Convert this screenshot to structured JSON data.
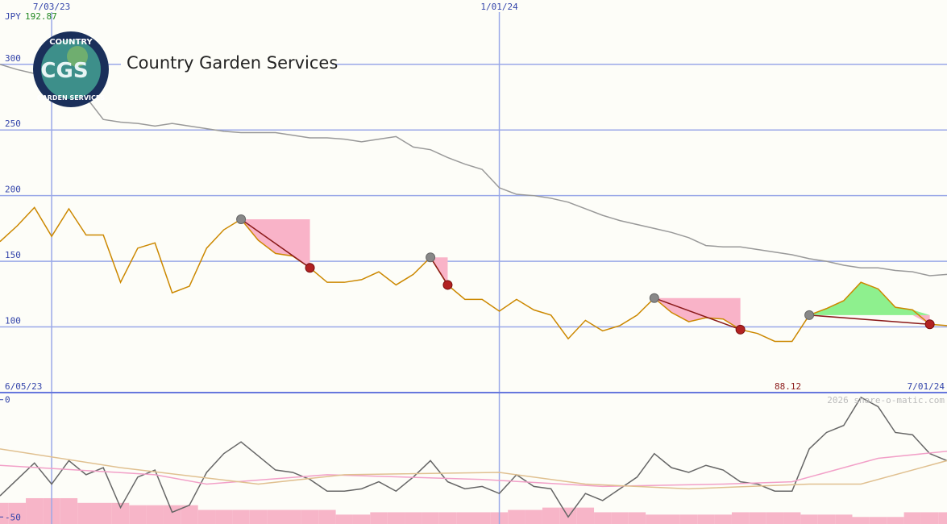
{
  "chart_data": {
    "type": "line",
    "title": "Country Garden Services",
    "logo_text": [
      "COUNTRY",
      "CGS",
      "GARDEN SERVICES"
    ],
    "currency": "JPY",
    "high": 192.87,
    "low": 88.12,
    "start_label": "6/05/23",
    "end_label": "7/01/24",
    "credit": "2026 share-o-matic.com",
    "x": [
      0,
      1,
      2,
      3,
      4,
      5,
      6,
      7,
      8,
      9,
      10,
      11,
      12,
      13,
      14,
      15,
      16,
      17,
      18,
      19,
      20,
      21,
      22,
      23,
      24,
      25,
      26,
      27,
      28,
      29,
      30,
      31,
      32,
      33,
      34,
      35,
      36,
      37,
      38,
      39,
      40,
      41,
      42,
      43,
      44,
      45,
      46,
      47,
      48,
      49,
      50,
      51,
      52,
      53,
      54,
      55
    ],
    "xlim": [
      0,
      55
    ],
    "xticks": [
      {
        "value": 3,
        "label": "7/03/23"
      },
      {
        "value": 29,
        "label": "1/01/24"
      }
    ],
    "ylim": [
      50,
      349
    ],
    "yticks": [
      100,
      150,
      200,
      250,
      300
    ],
    "grid": true,
    "series": [
      {
        "color": "#cc8800",
        "values": [
          165,
          177,
          191,
          169,
          190,
          170,
          170,
          134,
          160,
          164,
          126,
          131,
          160,
          174,
          182,
          166,
          156,
          154,
          145,
          134,
          134,
          136,
          142,
          132,
          140,
          153,
          132,
          121,
          121,
          112,
          121,
          113,
          109,
          91,
          105,
          97,
          101,
          109,
          122,
          111,
          104,
          107,
          106,
          98,
          95,
          89,
          89,
          109,
          114,
          120,
          134,
          129,
          115,
          113,
          102,
          101
        ]
      },
      {
        "color": "#999999",
        "values": [
          300,
          296,
          293,
          288,
          283,
          275,
          258,
          256,
          255,
          253,
          255,
          253,
          251,
          249,
          248,
          248,
          248,
          246,
          244,
          244,
          243,
          241,
          243,
          245,
          237,
          235,
          229,
          224,
          220,
          206,
          201,
          200,
          198,
          195,
          190,
          185,
          181,
          178,
          175,
          172,
          168,
          162,
          161,
          161,
          159,
          157,
          155,
          152,
          150,
          147,
          145,
          145,
          143,
          142,
          139,
          140
        ]
      }
    ],
    "signals": [
      [
        14,
        18
      ],
      [
        25,
        26
      ],
      [
        38,
        43
      ],
      [
        47,
        54
      ]
    ],
    "lower": {
      "ylim": [
        -53,
        3
      ],
      "yticks": [
        0,
        -50
      ],
      "bar_color": "#f7b5c8",
      "bars": [
        -44,
        -44,
        -42,
        -42,
        -42,
        -44,
        -44,
        -44,
        -45,
        -45,
        -45,
        -45,
        -47,
        -47,
        -47,
        -47,
        -47,
        -47,
        -47,
        -47,
        -49,
        -49,
        -48,
        -48,
        -48,
        -48,
        -48,
        -48,
        -48,
        -48,
        -47,
        -47,
        -46,
        -46,
        -46,
        -48,
        -48,
        -48,
        -49,
        -49,
        -49,
        -49,
        -49,
        -48,
        -48,
        -48,
        -48,
        -49,
        -49,
        -49,
        -50,
        -50,
        -50,
        -48,
        -48,
        -48
      ],
      "series": [
        {
          "color": "#666666",
          "values": [
            -41,
            -34,
            -27,
            -36,
            -26,
            -32,
            -29,
            -46,
            -33,
            -30,
            -48,
            -45,
            -31,
            -23,
            -18,
            -24,
            -30,
            -31,
            -34,
            -39,
            -39,
            -38,
            -35,
            -39,
            -33,
            -26,
            -35,
            -38,
            -37,
            -40,
            -32,
            -37,
            -38,
            -50,
            -40,
            -43,
            -38,
            -33,
            -23,
            -29,
            -31,
            -28,
            -30,
            -35,
            -36,
            -39,
            -39,
            -21,
            -14,
            -11,
            1,
            -3,
            -14,
            -15,
            -23,
            -26
          ]
        },
        {
          "color": "#f2a0c8",
          "x": [
            0,
            9,
            12,
            19,
            28,
            35,
            42,
            46,
            49,
            51,
            55
          ],
          "values": [
            -28,
            -32,
            -36,
            -32,
            -34,
            -37,
            -36,
            -35,
            -29,
            -25,
            -22
          ]
        },
        {
          "color": "#e0c090",
          "x": [
            0,
            7,
            15,
            20,
            29,
            34,
            40,
            47,
            50,
            55
          ],
          "values": [
            -21,
            -29,
            -36,
            -32,
            -31,
            -36,
            -38,
            -36,
            -36,
            -26
          ]
        }
      ]
    }
  }
}
